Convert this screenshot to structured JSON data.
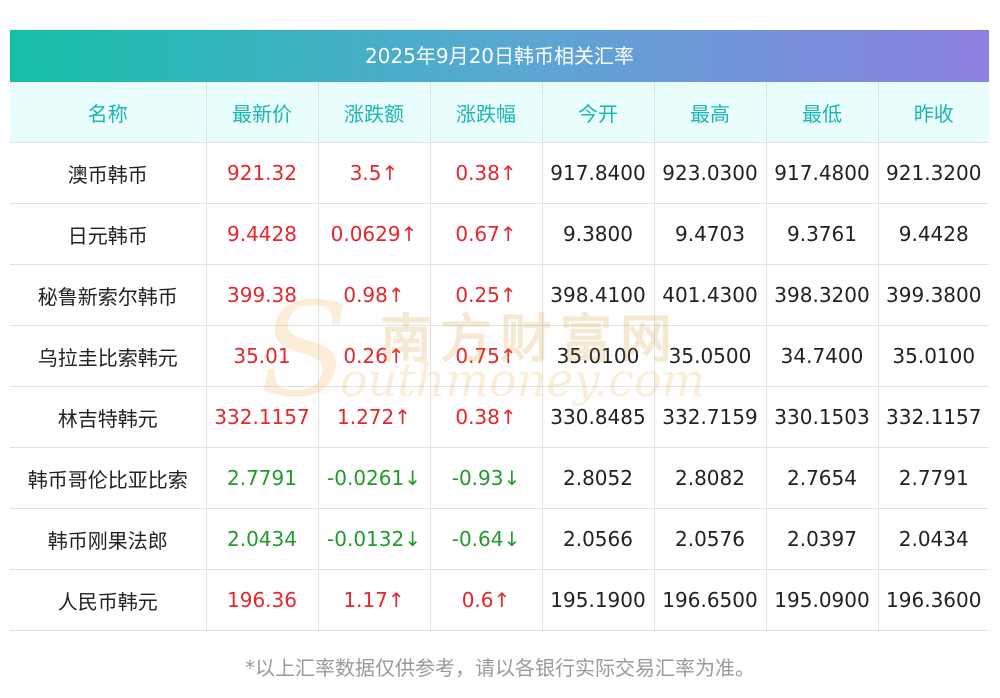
{
  "title": "2025年9月20日韩币相关汇率",
  "headers": [
    "名称",
    "最新价",
    "涨跌额",
    "涨跌幅",
    "今开",
    "最高",
    "最低",
    "昨收"
  ],
  "rows": [
    {
      "name": "澳币韩币",
      "latest": "921.32",
      "change": "3.5↑",
      "pct": "0.38↑",
      "open": "917.8400",
      "high": "923.0300",
      "low": "917.4800",
      "prev": "921.3200",
      "dir": "up"
    },
    {
      "name": "日元韩币",
      "latest": "9.4428",
      "change": "0.0629↑",
      "pct": "0.67↑",
      "open": "9.3800",
      "high": "9.4703",
      "low": "9.3761",
      "prev": "9.4428",
      "dir": "up"
    },
    {
      "name": "秘鲁新索尔韩币",
      "latest": "399.38",
      "change": "0.98↑",
      "pct": "0.25↑",
      "open": "398.4100",
      "high": "401.4300",
      "low": "398.3200",
      "prev": "399.3800",
      "dir": "up"
    },
    {
      "name": "乌拉圭比索韩元",
      "latest": "35.01",
      "change": "0.26↑",
      "pct": "0.75↑",
      "open": "35.0100",
      "high": "35.0500",
      "low": "34.7400",
      "prev": "35.0100",
      "dir": "up"
    },
    {
      "name": "林吉特韩元",
      "latest": "332.1157",
      "change": "1.272↑",
      "pct": "0.38↑",
      "open": "330.8485",
      "high": "332.7159",
      "low": "330.1503",
      "prev": "332.1157",
      "dir": "up"
    },
    {
      "name": "韩币哥伦比亚比索",
      "latest": "2.7791",
      "change": "-0.0261↓",
      "pct": "-0.93↓",
      "open": "2.8052",
      "high": "2.8082",
      "low": "2.7654",
      "prev": "2.7791",
      "dir": "down"
    },
    {
      "name": "韩币刚果法郎",
      "latest": "2.0434",
      "change": "-0.0132↓",
      "pct": "-0.64↓",
      "open": "2.0566",
      "high": "2.0576",
      "low": "2.0397",
      "prev": "2.0434",
      "dir": "down"
    },
    {
      "name": "人民币韩元",
      "latest": "196.36",
      "change": "1.17↑",
      "pct": "0.6↑",
      "open": "195.1900",
      "high": "196.6500",
      "low": "195.0900",
      "prev": "196.3600",
      "dir": "up"
    }
  ],
  "footer": "*以上汇率数据仅供参考，请以各银行实际交易汇率为准。",
  "watermark": {
    "cn": "南方财富网",
    "en": "outhmoney.com",
    "s": "S"
  },
  "colors": {
    "up": "#e5262b",
    "down": "#239a2e",
    "header_text": "#19b6b3",
    "header_bg": "#eafdfd"
  }
}
